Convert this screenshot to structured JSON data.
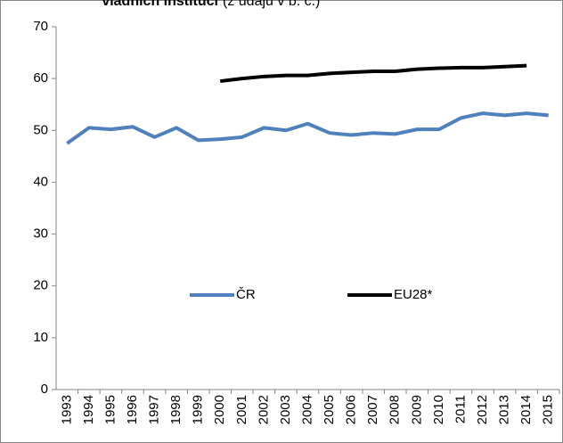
{
  "chart_data": {
    "type": "line",
    "title": "vládních institucí",
    "subtitle": "(z údajů v b. c.)",
    "categories": [
      "1993",
      "1994",
      "1995",
      "1996",
      "1997",
      "1998",
      "1999",
      "2000",
      "2001",
      "2002",
      "2003",
      "2004",
      "2005",
      "2006",
      "2007",
      "2008",
      "2009",
      "2010",
      "2011",
      "2012",
      "2013",
      "2014",
      "2015"
    ],
    "series": [
      {
        "name": "ČR",
        "color": "#4f81bd",
        "values": [
          47.5,
          50.5,
          50.2,
          50.7,
          48.7,
          50.5,
          48.1,
          48.3,
          48.7,
          50.5,
          50.0,
          51.3,
          49.5,
          49.1,
          49.5,
          49.3,
          50.2,
          50.2,
          52.4,
          53.3,
          52.9,
          53.3,
          52.9
        ]
      },
      {
        "name": "EU28*",
        "color": "#000000",
        "values": [
          null,
          null,
          null,
          null,
          null,
          null,
          null,
          59.5,
          60.0,
          60.4,
          60.6,
          60.6,
          61.0,
          61.2,
          61.4,
          61.4,
          61.8,
          62.0,
          62.1,
          62.1,
          62.3,
          62.5,
          null
        ]
      }
    ],
    "ylim": [
      0,
      70
    ],
    "yticks": [
      0,
      10,
      20,
      30,
      40,
      50,
      60,
      70
    ],
    "grid": false
  }
}
